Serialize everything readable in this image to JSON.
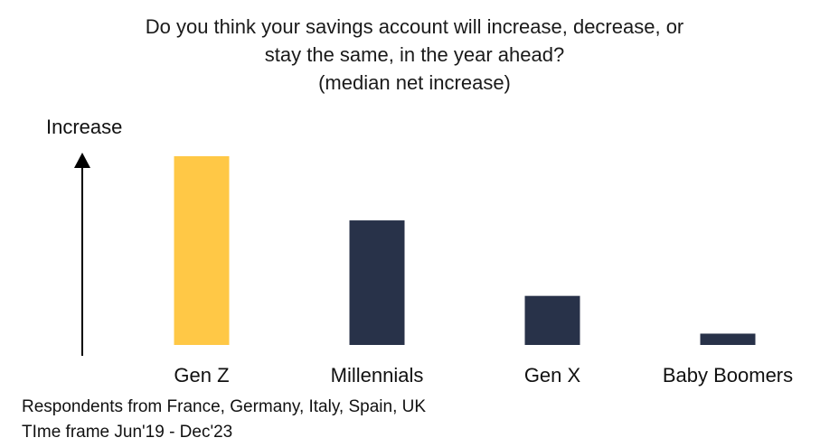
{
  "title": {
    "line1": "Do you think your savings account will increase, decrease, or",
    "line2": "stay the same, in the year ahead?",
    "line3": "(median net increase)"
  },
  "chart_data": {
    "type": "bar",
    "title": "Do you think your savings account will increase, decrease, or stay the same, in the year ahead? (median net increase)",
    "ylabel": "Increase",
    "xlabel": "",
    "categories": [
      "Gen Z",
      "Millennials",
      "Gen X",
      "Baby Boomers"
    ],
    "values": [
      100,
      66,
      26,
      6
    ],
    "ylim": [
      0,
      100
    ],
    "colors": [
      "#FFC846",
      "#283249",
      "#283249",
      "#283249"
    ],
    "grid": false,
    "legend": "none"
  },
  "footnotes": {
    "line1": "Respondents from France, Germany, Italy, Spain, UK",
    "line2": "TIme frame Jun'19 - Dec'23"
  }
}
